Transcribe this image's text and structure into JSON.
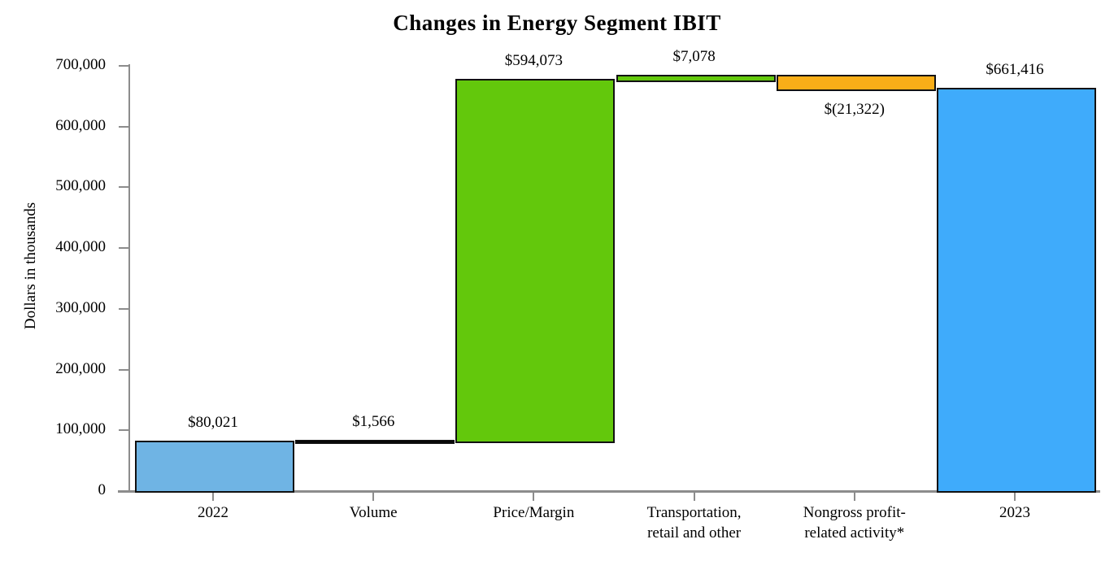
{
  "title": "Changes in Energy Segment IBIT",
  "chart_data": {
    "type": "bar",
    "subtype": "waterfall",
    "title": "Changes in Energy Segment IBIT",
    "xlabel": "",
    "ylabel": "Dollars in thousands",
    "ylim": [
      0,
      700000
    ],
    "grid": false,
    "legend": "none",
    "y_ticks": [
      {
        "label": "700,000",
        "value": 700000
      },
      {
        "label": "600,000",
        "value": 600000
      },
      {
        "label": "500,000",
        "value": 500000
      },
      {
        "label": "400,000",
        "value": 400000
      },
      {
        "label": "300,000",
        "value": 300000
      },
      {
        "label": "200,000",
        "value": 200000
      },
      {
        "label": "100,000",
        "value": 100000
      },
      {
        "label": "0",
        "value": 0
      }
    ],
    "categories": [
      "2022",
      "Volume",
      "Price/Margin",
      "Transportation,\nretail and other",
      "Nongross profit-\nrelated activity*",
      "2023"
    ],
    "bars": [
      {
        "category": "2022",
        "value": 80021,
        "label": "$80,021",
        "from": 0,
        "to": 80021,
        "color": "#6FB4E4",
        "label_position": "above"
      },
      {
        "category": "Volume",
        "value": 1566,
        "label": "$1,566",
        "from": 80021,
        "to": 81587,
        "color": "#000000",
        "label_position": "above"
      },
      {
        "category": "Price/Margin",
        "value": 594073,
        "label": "$594,073",
        "from": 81587,
        "to": 675660,
        "color": "#63C80C",
        "label_position": "above"
      },
      {
        "category": "Transportation,\nretail and other",
        "value": 7078,
        "label": "$7,078",
        "from": 675660,
        "to": 682738,
        "color": "#63C80C",
        "label_position": "above"
      },
      {
        "category": "Nongross profit-\nrelated activity*",
        "value": -21322,
        "label": "$(21,322)",
        "from": 682738,
        "to": 661416,
        "color": "#F9AE18",
        "label_position": "below"
      },
      {
        "category": "2023",
        "value": 661416,
        "label": "$661,416",
        "from": 0,
        "to": 661416,
        "color": "#3FABFB",
        "label_position": "above"
      }
    ],
    "colors": {
      "start_bar": "#6FB4E4",
      "end_bar": "#3FABFB",
      "increase": "#63C80C",
      "decrease": "#F9AE18",
      "volume_bar": "#000000",
      "bar_border": "#111111",
      "axis": "#8C8C8C",
      "text": "#000000",
      "background": "#FFFFFF"
    }
  }
}
